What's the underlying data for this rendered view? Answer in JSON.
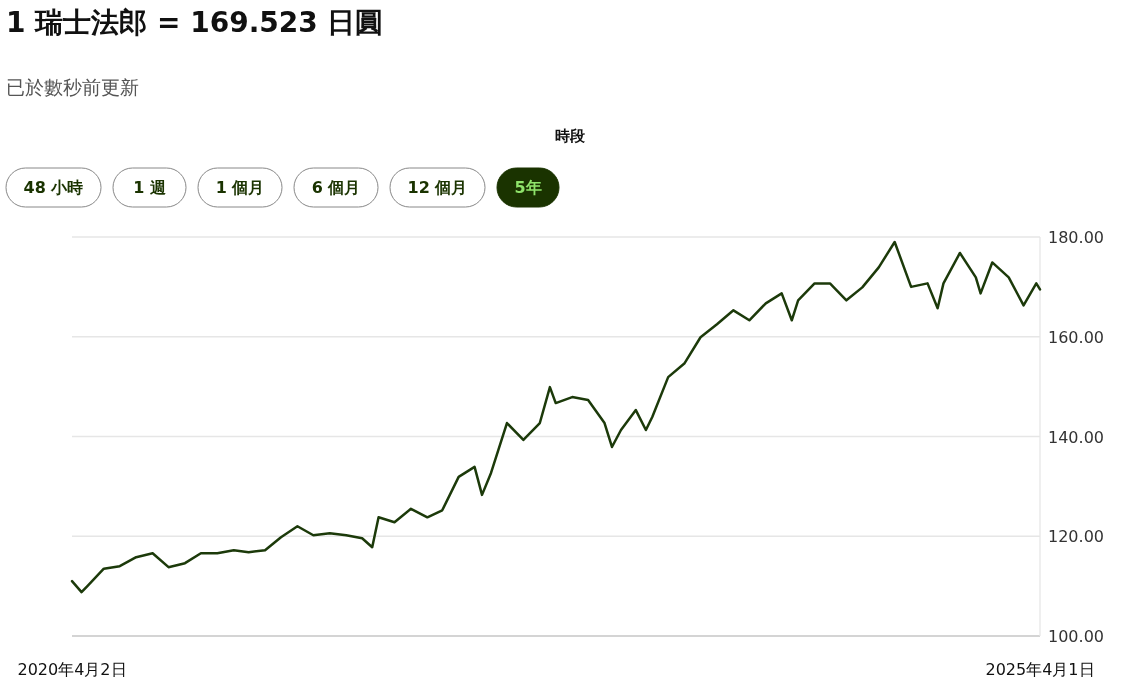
{
  "chart_data": {
    "type": "line",
    "title": "1 瑞士法郎 = 169.523 日圓",
    "subtitle": "已於數秒前更新",
    "annotations": [
      "時段",
      "48 小時",
      "1 週",
      "1 個月",
      "6 個月",
      "12 個月",
      "5年"
    ],
    "x": [
      "2020-04-02",
      "2020-04-20",
      "2020-05-01",
      "2020-06-01",
      "2020-07-01",
      "2020-08-01",
      "2020-09-01",
      "2020-10-01",
      "2020-11-01",
      "2020-12-01",
      "2021-01-01",
      "2021-02-01",
      "2021-03-01",
      "2021-04-01",
      "2021-05-01",
      "2021-06-01",
      "2021-07-01",
      "2021-08-01",
      "2021-09-01",
      "2021-10-01",
      "2021-10-20",
      "2021-11-01",
      "2021-12-01",
      "2022-01-01",
      "2022-02-01",
      "2022-03-01",
      "2022-04-01",
      "2022-05-01",
      "2022-05-15",
      "2022-06-01",
      "2022-07-01",
      "2022-08-01",
      "2022-09-01",
      "2022-09-20",
      "2022-10-01",
      "2022-11-01",
      "2022-12-01",
      "2023-01-01",
      "2023-01-15",
      "2023-02-01",
      "2023-03-01",
      "2023-03-20",
      "2023-04-01",
      "2023-05-01",
      "2023-06-01",
      "2023-07-01",
      "2023-08-01",
      "2023-09-01",
      "2023-10-01",
      "2023-11-01",
      "2023-12-01",
      "2023-12-20",
      "2024-01-01",
      "2024-02-01",
      "2024-03-01",
      "2024-04-01",
      "2024-05-01",
      "2024-06-01",
      "2024-07-01",
      "2024-08-01",
      "2024-09-01",
      "2024-09-20",
      "2024-10-01",
      "2024-11-01",
      "2024-12-01",
      "2024-12-10",
      "2025-01-01",
      "2025-02-01",
      "2025-03-01",
      "2025-03-25",
      "2025-04-01"
    ],
    "series": [
      {
        "color": "#1c3a0a",
        "values": [
          111.0,
          108.8,
          110.0,
          113.5,
          114.0,
          115.8,
          116.6,
          113.8,
          114.6,
          116.6,
          116.6,
          117.2,
          116.8,
          117.2,
          119.8,
          122.0,
          120.2,
          120.6,
          120.2,
          119.6,
          117.8,
          123.8,
          122.8,
          125.5,
          123.8,
          125.2,
          131.9,
          133.9,
          128.3,
          132.7,
          142.7,
          139.3,
          142.7,
          149.9,
          146.7,
          147.9,
          147.3,
          142.7,
          137.9,
          141.3,
          145.3,
          141.3,
          143.9,
          151.9,
          154.7,
          159.9,
          162.5,
          165.3,
          163.3,
          166.7,
          168.7,
          163.3,
          167.3,
          170.7,
          170.7,
          167.3,
          169.9,
          173.9,
          179.0,
          170.0,
          170.7,
          165.7,
          170.7,
          176.8,
          171.9,
          168.7,
          174.9,
          171.9,
          166.3,
          170.7,
          169.5
        ]
      }
    ],
    "xlim": [
      "2020-04-02",
      "2025-04-01"
    ],
    "xticks": [
      {
        "value": "2020-04-02",
        "label": "2020年4月2日"
      },
      {
        "value": "2025-04-01",
        "label": "2025年4月1日"
      }
    ],
    "ylim": [
      100,
      180
    ],
    "yticks": [
      {
        "value": 100,
        "label": "100.00"
      },
      {
        "value": 120,
        "label": "120.00"
      },
      {
        "value": 140,
        "label": "140.00"
      },
      {
        "value": 160,
        "label": "160.00"
      },
      {
        "value": 180,
        "label": "180.00"
      }
    ],
    "grid": "y",
    "marker": "none",
    "line_style": "solid"
  }
}
